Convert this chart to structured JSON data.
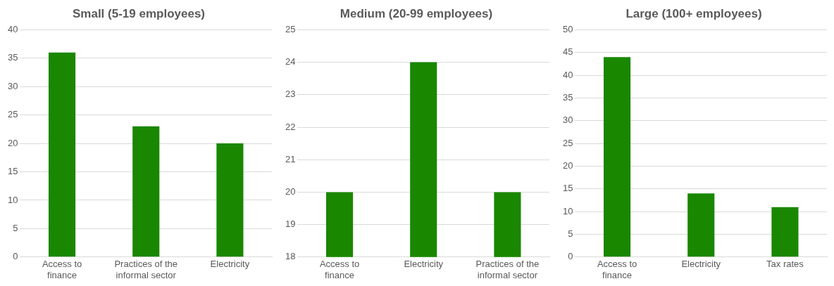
{
  "chart_data": [
    {
      "type": "bar",
      "title": "Small (5-19 employees)",
      "categories": [
        "Access to finance",
        "Practices of the informal sector",
        "Electricity"
      ],
      "values": [
        36,
        23,
        20
      ],
      "color": "#1a8700",
      "ylim": [
        0,
        40
      ],
      "yticks": [
        0,
        5,
        10,
        15,
        20,
        25,
        30,
        35,
        40
      ],
      "grid": "y",
      "legend": false
    },
    {
      "type": "bar",
      "title": "Medium (20-99 employees)",
      "categories": [
        "Access to finance",
        "Electricity",
        "Practices of the informal sector"
      ],
      "values": [
        20,
        24,
        20
      ],
      "color": "#1a8700",
      "ylim": [
        18,
        25
      ],
      "yticks": [
        18,
        19,
        20,
        21,
        22,
        23,
        24,
        25
      ],
      "grid": "y",
      "legend": false
    },
    {
      "type": "bar",
      "title": "Large (100+ employees)",
      "categories": [
        "Access to finance",
        "Electricity",
        "Tax rates"
      ],
      "values": [
        44,
        14,
        11
      ],
      "color": "#1a8700",
      "ylim": [
        0,
        50
      ],
      "yticks": [
        0,
        5,
        10,
        15,
        20,
        25,
        30,
        35,
        40,
        45,
        50
      ],
      "grid": "y",
      "legend": false
    }
  ]
}
